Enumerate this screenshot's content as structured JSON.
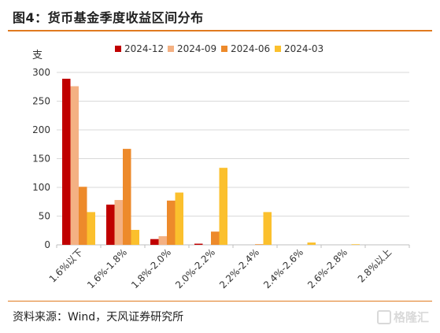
{
  "figure": {
    "title": "图4：货币基金季度收益区间分布",
    "source": "资料来源：Wind，天风证券研究所",
    "watermark": "格隆汇"
  },
  "chart_data": {
    "type": "bar",
    "title": "",
    "ylabel": "支",
    "xlabel": "",
    "ylim": [
      0,
      300
    ],
    "yticks": [
      0,
      50,
      100,
      150,
      200,
      250,
      300
    ],
    "grid": "horizontal",
    "legend_position": "top",
    "categories": [
      "1.6%以下",
      "1.6%-1.8%",
      "1.8%-2.0%",
      "2.0%-2.2%",
      "2.2%-2.4%",
      "2.4%-2.6%",
      "2.6%-2.8%",
      "2.8%以上"
    ],
    "series": [
      {
        "name": "2024-12",
        "color": "#c00000",
        "values": [
          289,
          70,
          10,
          2,
          0,
          0,
          0,
          0
        ]
      },
      {
        "name": "2024-09",
        "color": "#f4b183",
        "values": [
          276,
          78,
          15,
          0,
          0,
          0,
          0,
          0
        ]
      },
      {
        "name": "2024-06",
        "color": "#ed8a2b",
        "values": [
          101,
          167,
          77,
          23,
          1,
          0,
          0,
          0
        ]
      },
      {
        "name": "2024-03",
        "color": "#fbc02d",
        "values": [
          57,
          26,
          91,
          134,
          57,
          4,
          1,
          0
        ]
      }
    ]
  }
}
